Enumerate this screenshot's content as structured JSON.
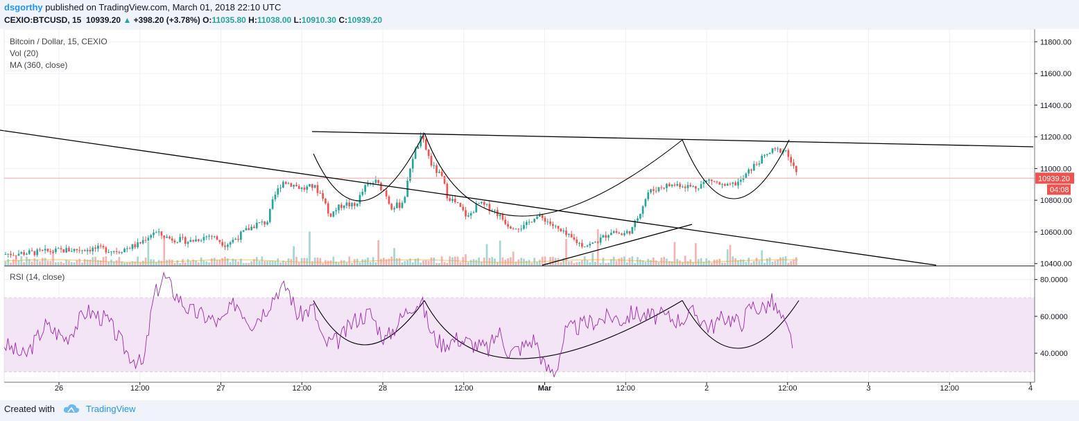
{
  "header": {
    "author": "dsgorthy",
    "published": "published on TradingView.com, March 01, 2018 22:10 UTC",
    "symbol": "CEXIO:BTCUSD, 15",
    "last": "10939.20",
    "change": "+398.20 (+3.78%)",
    "o_label": "O:",
    "o_value": "11035.80",
    "h_label": "H:",
    "h_value": "11038.00",
    "l_label": "L:",
    "l_value": "10910.30",
    "c_label": "C:",
    "c_value": "10939.20"
  },
  "legend": {
    "title": "Bitcoin / Dollar, 15, CEXIO",
    "vol": "Vol (20)",
    "ma": "MA (360, close)",
    "rsi": "RSI (14, close)"
  },
  "footer": {
    "created_with": "Created with",
    "brand": "TradingView"
  },
  "colors": {
    "up": "#26a69a",
    "down": "#ef5350",
    "rsi_line": "#9c27b0",
    "rsi_band": "#f3e5f5",
    "price_badge": "#ef5350",
    "trendline": "#000000",
    "brand": "#2196f3"
  },
  "chart_data": [
    {
      "type": "candlestick",
      "title": "Bitcoin / Dollar, 15, CEXIO",
      "y_ticks": [
        "11800.00",
        "11600.00",
        "11400.00",
        "11200.00",
        "11000.00",
        "10800.00",
        "10600.00",
        "10400.00"
      ],
      "ylim": [
        10390,
        11880
      ],
      "x_ticks": [
        "26",
        "12:00",
        "27",
        "12:00",
        "28",
        "12:00",
        "Mar",
        "12:00",
        "2",
        "12:00",
        "3",
        "12:00",
        "4"
      ],
      "last_price": "10939.20",
      "countdown": "04:08",
      "price_path": [
        [
          0.0,
          10460
        ],
        [
          0.03,
          10470
        ],
        [
          0.06,
          10485
        ],
        [
          0.09,
          10495
        ],
        [
          0.11,
          10480
        ],
        [
          0.13,
          10520
        ],
        [
          0.145,
          10600
        ],
        [
          0.16,
          10560
        ],
        [
          0.18,
          10540
        ],
        [
          0.2,
          10580
        ],
        [
          0.215,
          10520
        ],
        [
          0.225,
          10560
        ],
        [
          0.235,
          10610
        ],
        [
          0.245,
          10650
        ],
        [
          0.255,
          10660
        ],
        [
          0.262,
          10820
        ],
        [
          0.27,
          10920
        ],
        [
          0.28,
          10900
        ],
        [
          0.29,
          10870
        ],
        [
          0.3,
          10890
        ],
        [
          0.31,
          10820
        ],
        [
          0.315,
          10700
        ],
        [
          0.322,
          10740
        ],
        [
          0.33,
          10780
        ],
        [
          0.34,
          10760
        ],
        [
          0.35,
          10880
        ],
        [
          0.36,
          10920
        ],
        [
          0.37,
          10850
        ],
        [
          0.375,
          10760
        ],
        [
          0.385,
          10770
        ],
        [
          0.39,
          10850
        ],
        [
          0.395,
          11050
        ],
        [
          0.405,
          11200
        ],
        [
          0.415,
          11020
        ],
        [
          0.425,
          10940
        ],
        [
          0.43,
          10830
        ],
        [
          0.44,
          10770
        ],
        [
          0.45,
          10690
        ],
        [
          0.46,
          10780
        ],
        [
          0.475,
          10740
        ],
        [
          0.49,
          10640
        ],
        [
          0.505,
          10630
        ],
        [
          0.515,
          10700
        ],
        [
          0.525,
          10680
        ],
        [
          0.54,
          10600
        ],
        [
          0.55,
          10560
        ],
        [
          0.56,
          10520
        ],
        [
          0.57,
          10520
        ],
        [
          0.58,
          10560
        ],
        [
          0.59,
          10610
        ],
        [
          0.6,
          10580
        ],
        [
          0.61,
          10620
        ],
        [
          0.625,
          10850
        ],
        [
          0.64,
          10890
        ],
        [
          0.655,
          10900
        ],
        [
          0.67,
          10880
        ],
        [
          0.685,
          10930
        ],
        [
          0.7,
          10880
        ],
        [
          0.715,
          10920
        ],
        [
          0.725,
          11000
        ],
        [
          0.735,
          11060
        ],
        [
          0.745,
          11110
        ],
        [
          0.758,
          11120
        ],
        [
          0.765,
          11020
        ],
        [
          0.77,
          10940
        ]
      ]
    },
    {
      "type": "volume",
      "title": "Vol (20)"
    },
    {
      "type": "line",
      "title": "MA (360, close)"
    },
    {
      "type": "line",
      "title": "RSI (14, close)",
      "y_ticks": [
        "80.0000",
        "60.0000",
        "40.0000"
      ],
      "ylim": [
        25,
        87
      ],
      "band": [
        30,
        70
      ],
      "rsi_path": [
        [
          0.0,
          45
        ],
        [
          0.02,
          38
        ],
        [
          0.04,
          55
        ],
        [
          0.06,
          48
        ],
        [
          0.08,
          63
        ],
        [
          0.1,
          58
        ],
        [
          0.12,
          40
        ],
        [
          0.135,
          33
        ],
        [
          0.145,
          70
        ],
        [
          0.155,
          82
        ],
        [
          0.165,
          73
        ],
        [
          0.18,
          63
        ],
        [
          0.195,
          60
        ],
        [
          0.21,
          56
        ],
        [
          0.225,
          68
        ],
        [
          0.24,
          56
        ],
        [
          0.255,
          65
        ],
        [
          0.265,
          74
        ],
        [
          0.275,
          76
        ],
        [
          0.285,
          60
        ],
        [
          0.3,
          65
        ],
        [
          0.31,
          45
        ],
        [
          0.325,
          47
        ],
        [
          0.34,
          58
        ],
        [
          0.355,
          62
        ],
        [
          0.37,
          47
        ],
        [
          0.38,
          55
        ],
        [
          0.395,
          66
        ],
        [
          0.405,
          68
        ],
        [
          0.415,
          50
        ],
        [
          0.425,
          45
        ],
        [
          0.44,
          48
        ],
        [
          0.455,
          45
        ],
        [
          0.47,
          42
        ],
        [
          0.48,
          52
        ],
        [
          0.49,
          40
        ],
        [
          0.505,
          44
        ],
        [
          0.515,
          48
        ],
        [
          0.525,
          32
        ],
        [
          0.535,
          30
        ],
        [
          0.545,
          52
        ],
        [
          0.56,
          55
        ],
        [
          0.575,
          58
        ],
        [
          0.59,
          60
        ],
        [
          0.6,
          58
        ],
        [
          0.61,
          62
        ],
        [
          0.625,
          60
        ],
        [
          0.64,
          60
        ],
        [
          0.655,
          58
        ],
        [
          0.67,
          62
        ],
        [
          0.685,
          54
        ],
        [
          0.7,
          60
        ],
        [
          0.715,
          56
        ],
        [
          0.725,
          66
        ],
        [
          0.735,
          64
        ],
        [
          0.745,
          68
        ],
        [
          0.755,
          58
        ],
        [
          0.765,
          46
        ]
      ]
    }
  ]
}
